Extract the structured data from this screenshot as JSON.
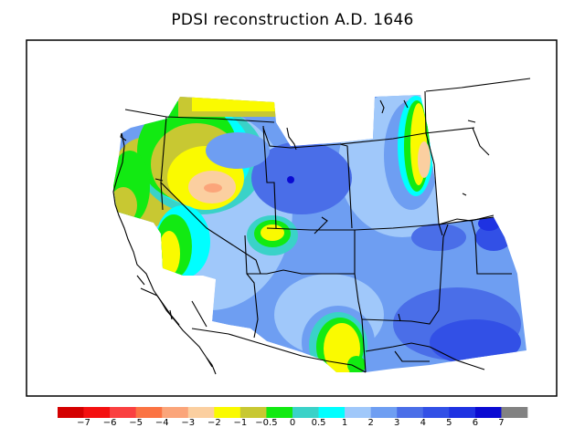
{
  "title": "PDSI reconstruction A.D. 1646",
  "colors": {
    "frame": "#000000",
    "background": "#ffffff"
  },
  "legend": {
    "swatch_colors": [
      "#d40000",
      "#f41010",
      "#fa4040",
      "#fb7343",
      "#fba57a",
      "#fbcfa0",
      "#fafa00",
      "#c8c832",
      "#12ea12",
      "#3ad2c8",
      "#00ffff",
      "#a0c8fa",
      "#6e9ef2",
      "#4a6ee8",
      "#3250e6",
      "#1e32e2",
      "#0a0ad2",
      "#828282"
    ],
    "tick_labels": [
      "−7",
      "−6",
      "−5",
      "−4",
      "−3",
      "−2",
      "−1",
      "−0.5",
      "0",
      "0.5",
      "1",
      "2",
      "3",
      "4",
      "5",
      "6",
      "7"
    ]
  }
}
